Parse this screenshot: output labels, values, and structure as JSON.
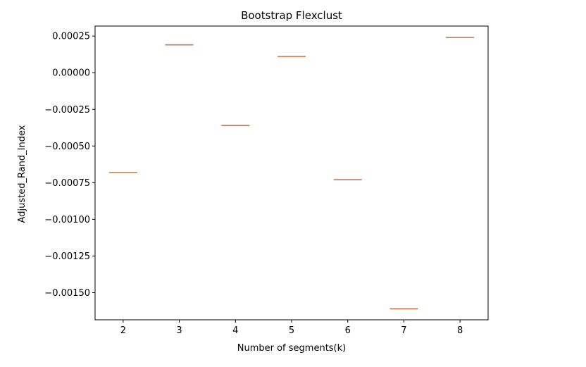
{
  "chart_data": {
    "type": "box",
    "title": "Bootstrap Flexclust",
    "xlabel": "Number of segments(k)",
    "ylabel": "Adjusted_Rand_Index",
    "categories": [
      "2",
      "3",
      "4",
      "5",
      "6",
      "7",
      "8"
    ],
    "values": [
      -0.00068,
      0.00019,
      -0.00036,
      0.00011,
      -0.00073,
      -0.00161,
      0.00024
    ],
    "yticks": [
      0.00025,
      0.0,
      -0.00025,
      -0.0005,
      -0.00075,
      -0.001,
      -0.00125,
      -0.0015
    ],
    "ytick_labels": [
      "0.00025",
      "0.00000",
      "−0.00025",
      "−0.00050",
      "−0.00075",
      "−0.00100",
      "−0.00125",
      "−0.00150"
    ],
    "ylim": [
      -0.001685,
      0.000318
    ],
    "xlim": [
      1.5,
      8.5
    ],
    "grid": false,
    "colors": {
      "box_outline": "#555555",
      "median": "#dd8452",
      "axes": "#000000",
      "text": "#000000"
    }
  }
}
